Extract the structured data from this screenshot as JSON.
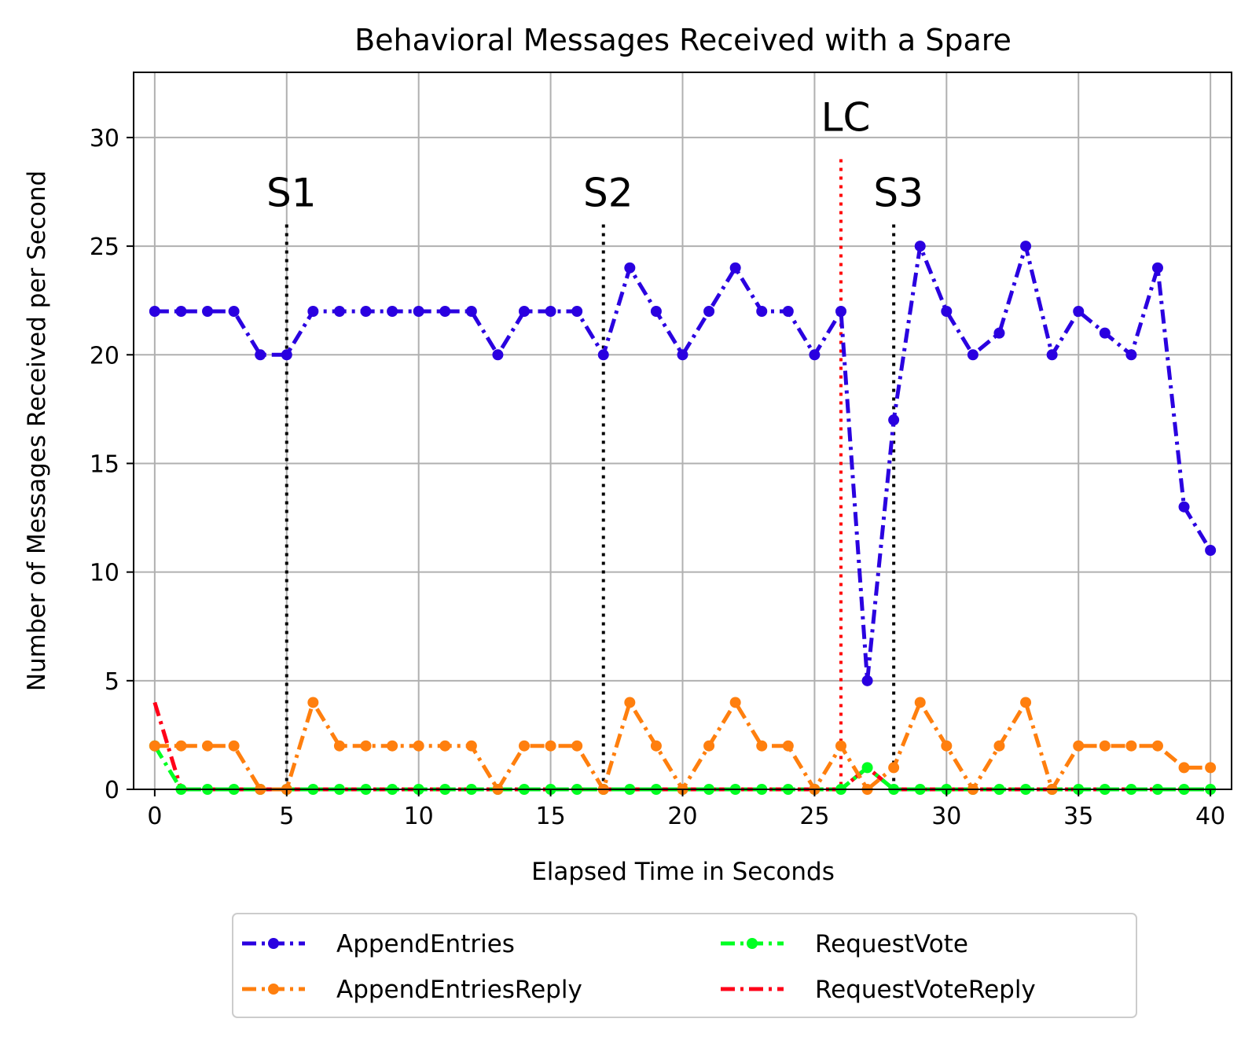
{
  "chart_data": {
    "type": "line",
    "title": "Behavioral Messages Received with a Spare",
    "xlabel": "Elapsed Time in Seconds",
    "ylabel": "Number of Messages Received per Second",
    "xlim": [
      -0.8,
      40.8
    ],
    "ylim": [
      0,
      33
    ],
    "xticks": [
      0,
      5,
      10,
      15,
      20,
      25,
      30,
      35,
      40
    ],
    "yticks": [
      0,
      5,
      10,
      15,
      20,
      25,
      30
    ],
    "grid": true,
    "legend_position": "below",
    "x": [
      0,
      1,
      2,
      3,
      4,
      5,
      6,
      7,
      8,
      9,
      10,
      11,
      12,
      13,
      14,
      15,
      16,
      17,
      18,
      19,
      20,
      21,
      22,
      23,
      24,
      25,
      26,
      27,
      28,
      29,
      30,
      31,
      32,
      33,
      34,
      35,
      36,
      37,
      38,
      39,
      40
    ],
    "series": [
      {
        "name": "AppendEntries",
        "color": "#2a00e0",
        "style": "dashdot",
        "values": [
          22,
          22,
          22,
          22,
          20,
          20,
          22,
          22,
          22,
          22,
          22,
          22,
          22,
          20,
          22,
          22,
          22,
          20,
          24,
          22,
          20,
          22,
          24,
          22,
          22,
          20,
          22,
          5,
          17,
          25,
          22,
          20,
          21,
          25,
          20,
          22,
          21,
          20,
          24,
          13,
          11
        ]
      },
      {
        "name": "AppendEntriesReply",
        "color": "#ff7f0e",
        "style": "dashdot",
        "values": [
          2,
          2,
          2,
          2,
          0,
          0,
          4,
          2,
          2,
          2,
          2,
          2,
          2,
          0,
          2,
          2,
          2,
          0,
          4,
          2,
          0,
          2,
          4,
          2,
          2,
          0,
          2,
          0,
          1,
          4,
          2,
          0,
          2,
          4,
          0,
          2,
          2,
          2,
          2,
          1,
          1
        ]
      },
      {
        "name": "RequestVote",
        "color": "#00ff22",
        "style": "dashdot",
        "values": [
          2,
          0,
          0,
          0,
          0,
          0,
          0,
          0,
          0,
          0,
          0,
          0,
          0,
          0,
          0,
          0,
          0,
          0,
          0,
          0,
          0,
          0,
          0,
          0,
          0,
          0,
          0,
          1,
          0,
          0,
          0,
          0,
          0,
          0,
          0,
          0,
          0,
          0,
          0,
          0,
          0
        ]
      },
      {
        "name": "RequestVoteReply",
        "color": "#ff0018",
        "style": "dashdot",
        "values": [
          4,
          0,
          0,
          0,
          0,
          0,
          0,
          0,
          0,
          0,
          0,
          0,
          0,
          0,
          0,
          0,
          0,
          0,
          0,
          0,
          0,
          0,
          0,
          0,
          0,
          0,
          0,
          1,
          0,
          0,
          0,
          0,
          0,
          0,
          0,
          0,
          0,
          0,
          0,
          0,
          0
        ]
      }
    ],
    "annotations": [
      {
        "label": "S1",
        "x": 5,
        "y_top": 26,
        "color": "#000000"
      },
      {
        "label": "S2",
        "x": 17,
        "y_top": 26,
        "color": "#000000"
      },
      {
        "label": "LC",
        "x": 26,
        "y_top": 29,
        "color": "#ff0000"
      },
      {
        "label": "S3",
        "x": 28,
        "y_top": 26,
        "color": "#000000"
      }
    ]
  }
}
